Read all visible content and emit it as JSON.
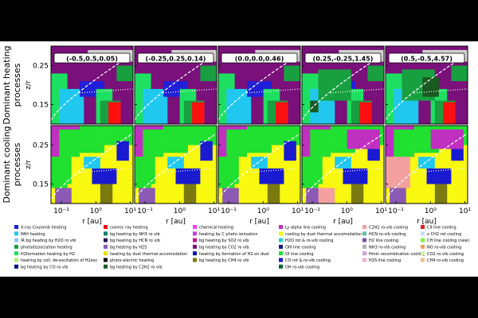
{
  "chart_data": {
    "type": "heatmap",
    "rows": [
      {
        "title": "Dominant heating processes",
        "role": "heating"
      },
      {
        "title": "Dominant cooling processes",
        "role": "cooling"
      }
    ],
    "panels": [
      {
        "label": "(-0.5,0.5,0.05)"
      },
      {
        "label": "(-0.25,0.25,0.14)"
      },
      {
        "label": "(0.0,0.0,0.46)"
      },
      {
        "label": "(0.25,-0.25,1.45)"
      },
      {
        "label": "(0.5,-0.5,4.57)"
      }
    ],
    "xlabel": "r [au]",
    "ylabel": "z/r",
    "xscale": "log",
    "xlim": [
      0.05,
      12
    ],
    "ylim": [
      0.1,
      0.3
    ],
    "xticks": [
      0.1,
      1,
      10
    ],
    "xtick_labels": [
      "10⁻¹",
      "10⁰",
      "10¹"
    ],
    "yticks": [
      0.15,
      0.25
    ],
    "ytick_labels": [
      "0.15",
      "0.25"
    ],
    "colors": {
      "xray": "#2020d8",
      "pah": "#20c8f0",
      "ir_h2o": "#8ec0ff",
      "photodiss": "#18a040",
      "h2form": "#1ee060",
      "coll_deexc": "#b0f070",
      "bg_co": "#0a0a80",
      "cosmic": "#ff1010",
      "nh3": "#108070",
      "hcn": "#2a1a5a",
      "h2s": "#8a5ab4",
      "dust_accom": "#e8e000",
      "photoelectric": "#101010",
      "c2h2": "#1a5a20",
      "chem": "#f040f0",
      "c_photoion": "#c040e0",
      "so2": "#c01890",
      "co2": "#7a107a",
      "h2_dust": "#1010b0",
      "ch4": "#7a7a10",
      "lya": "#c030c0",
      "dust_thermal": "#f8f810",
      "h2o_rotvib": "#20d0d0",
      "oiii": "#1a1a8a",
      "oi": "#20e030",
      "co_rotvib": "#1a1ad0",
      "oh": "#0a6a30",
      "c2h2_cool": "#f4a0a0",
      "hcn_cool": "#60c0a0",
      "h2_line": "#7050b0",
      "nh3_cool": "#b0b0b0",
      "hmin": "#d0a0e0",
      "h2s_cool": "#f0b0d0",
      "cii": "#e02020",
      "o_ch2": "#c0e0f0",
      "ch_line": "#7cfc40",
      "no": "#f0a060",
      "co2_cool": "#d0f0b0",
      "ch4_cool": "#f0c090",
      "gas": "#d0d0d0"
    },
    "legend": [
      [
        {
          "label": "X-ray Coulomb heating",
          "color": "#2020d8"
        },
        {
          "label": "PAH heating",
          "color": "#20c8f0"
        },
        {
          "label": "IR bg heating by H2O ro vib",
          "color": "#8ec0ff"
        },
        {
          "label": "photodissociation heating",
          "color": "#18a040"
        },
        {
          "label": "H2formation heating by H2",
          "color": "#1ee060"
        },
        {
          "label": "heating by coll. de-excitation of H2exc",
          "color": "#b0f070"
        },
        {
          "label": "bg heating by CO ro vib",
          "color": "#0a0a80"
        }
      ],
      [
        {
          "label": "cosmic ray heating",
          "color": "#ff1010"
        },
        {
          "label": "bg heating by NH3 ro vib",
          "color": "#108070"
        },
        {
          "label": "bg heating by HCN ro vib",
          "color": "#2a1a5a"
        },
        {
          "label": "bg heating by H2S",
          "color": "#8a5ab4"
        },
        {
          "label": "heating by dust thermal accomodation",
          "color": "#e8e000"
        },
        {
          "label": "photo-electric heating",
          "color": "#101010"
        },
        {
          "label": "bg heating by C2H2 ro vib",
          "color": "#1a5a20"
        }
      ],
      [
        {
          "label": "chemical heating",
          "color": "#f040f0"
        },
        {
          "label": "heating by C photo ionisation",
          "color": "#c040e0"
        },
        {
          "label": "bg heating by SO2 ro vib",
          "color": "#c01890"
        },
        {
          "label": "bg heating by CO2 ro vib",
          "color": "#7a107a"
        },
        {
          "label": "heating by formation of H2 on dust",
          "color": "#1010b0"
        },
        {
          "label": "bg heating by CH4 ro vib",
          "color": "#7a7a10"
        }
      ],
      [
        {
          "label": "Ly alpha line cooling",
          "color": "#c030c0"
        },
        {
          "label": "cooling by dust thermal accomodation",
          "color": "#f8f810"
        },
        {
          "label": "H2O rot & ro-vib cooling",
          "color": "#20d0d0"
        },
        {
          "label": "OIII line cooling",
          "color": "#1a1a8a"
        },
        {
          "label": "OI line cooling",
          "color": "#20e030"
        },
        {
          "label": "CO rot & ro-vib cooling",
          "color": "#1a1ad0"
        },
        {
          "label": "OH ro-vib cooling",
          "color": "#0a6a30"
        }
      ],
      [
        {
          "label": "C2H2 ro-vib cooling",
          "color": "#f4a0a0"
        },
        {
          "label": "HCN ro-vib cooling",
          "color": "#60c0a0"
        },
        {
          "label": "H2 line cooling",
          "color": "#7050b0"
        },
        {
          "label": "NH3 ro-vib cooling",
          "color": "#b0b0b0"
        },
        {
          "label": "Hmin recombination cooling",
          "color": "#d0a0e0"
        },
        {
          "label": "H2S line cooling",
          "color": "#f0b0d0"
        }
      ],
      [
        {
          "label": "CII line cooling",
          "color": "#e02020"
        },
        {
          "label": "o CH2 rot cooling",
          "color": "#c0e0f0"
        },
        {
          "label": "CH line cooling (new)",
          "color": "#7cfc40"
        },
        {
          "label": "NO ro-vib cooling",
          "color": "#f0a060"
        },
        {
          "label": "CO2 ro-vib cooling",
          "color": "#d0f0b0"
        },
        {
          "label": "CH4 ro-vib cooling",
          "color": "#f0c090"
        }
      ]
    ]
  }
}
